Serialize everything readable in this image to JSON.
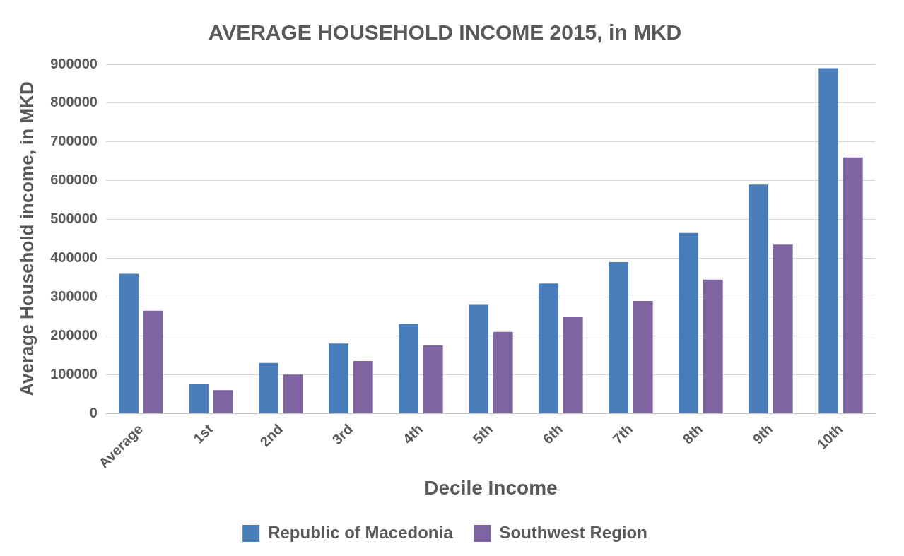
{
  "chart_data": {
    "type": "bar",
    "title": "AVERAGE HOUSEHOLD INCOME 2015, in MKD",
    "xlabel": "Decile Income",
    "ylabel": "Average Household income, in MKD",
    "categories": [
      "Average",
      "1st",
      "2nd",
      "3rd",
      "4th",
      "5th",
      "6th",
      "7th",
      "8th",
      "9th",
      "10th"
    ],
    "series": [
      {
        "name": "Republic of Macedonia",
        "color": "#4a7ebb",
        "values": [
          360000,
          75000,
          130000,
          180000,
          230000,
          280000,
          335000,
          390000,
          465000,
          590000,
          890000
        ]
      },
      {
        "name": "Southwest Region",
        "color": "#8064a2",
        "values": [
          265000,
          60000,
          100000,
          135000,
          175000,
          210000,
          250000,
          290000,
          345000,
          435000,
          660000
        ]
      }
    ],
    "ylim": [
      0,
      900000
    ],
    "yticks": [
      0,
      100000,
      200000,
      300000,
      400000,
      500000,
      600000,
      700000,
      800000,
      900000
    ],
    "grid": "y",
    "legend": "bottom"
  }
}
